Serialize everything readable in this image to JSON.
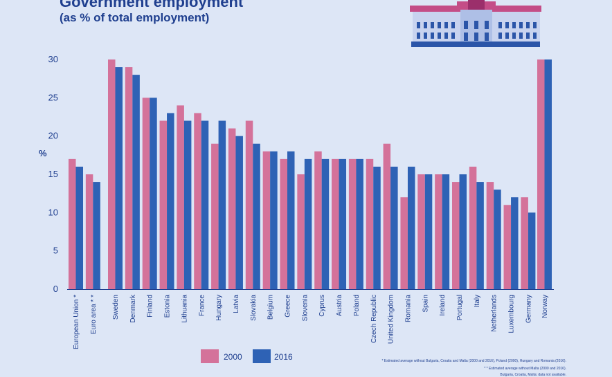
{
  "chart_data": {
    "type": "bar",
    "title": "Government employment",
    "subtitle": "(as % of total employment)",
    "ylabel": "%",
    "xlabel": "",
    "ylim": [
      0,
      30
    ],
    "yticks": [
      0,
      5,
      10,
      15,
      20,
      25,
      30
    ],
    "grid": false,
    "categories": [
      "European Union *",
      "Euro area * *",
      "Sweden",
      "Denmark",
      "Finland",
      "Estonia",
      "Lithuania",
      "France",
      "Hungary",
      "Latvia",
      "Slovakia",
      "Belgium",
      "Greece",
      "Slovenia",
      "Cyprus",
      "Austria",
      "Poland",
      "Czech Republic",
      "United Kingdom",
      "Romania",
      "Spain",
      "Ireland",
      "Portugal",
      "Italy",
      "Netherlands",
      "Luxembourg",
      "Germany",
      "Norway"
    ],
    "series": [
      {
        "name": "2000",
        "color": "#d4729a",
        "values": [
          17,
          15,
          30,
          29,
          25,
          22,
          24,
          23,
          19,
          21,
          22,
          18,
          17,
          15,
          18,
          17,
          17,
          17,
          19,
          12,
          15,
          15,
          14,
          16,
          14,
          11,
          12,
          30
        ]
      },
      {
        "name": "2016",
        "color": "#2e62b5",
        "values": [
          16,
          14,
          29,
          28,
          25,
          23,
          22,
          22,
          22,
          20,
          19,
          18,
          18,
          17,
          17,
          17,
          17,
          16,
          16,
          16,
          15,
          15,
          15,
          14,
          13,
          12,
          10,
          30
        ]
      }
    ],
    "legend_position": "bottom-center",
    "footnotes": [
      "* Estimated average without Bulgaria, Croatia and Malta (2000 and 2016), Poland (2000), Hungary and Romania (2016).",
      "* * Estimated average without Malta (2000 and 2016).",
      "Bulgaria, Croatia, Malta: data not available."
    ]
  },
  "icon": "government-building-icon"
}
